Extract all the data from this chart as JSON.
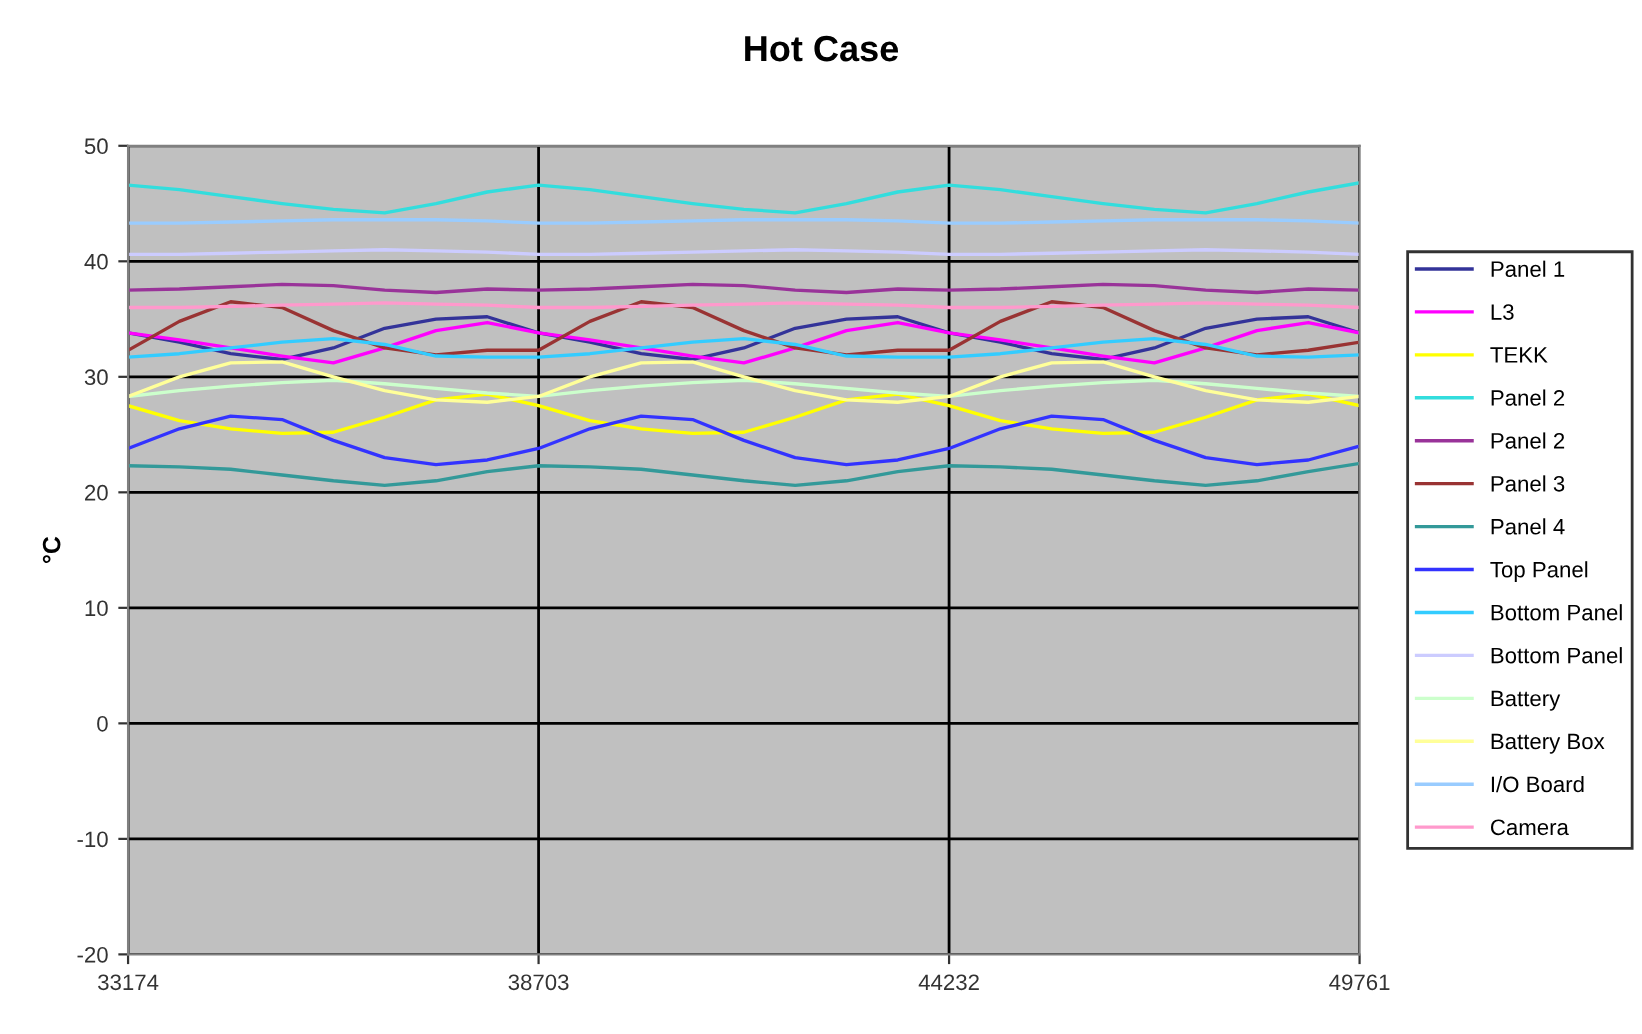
{
  "chart_data": {
    "type": "line",
    "title": "Hot Case",
    "ylabel": "°C",
    "x": [
      33174,
      33865,
      34556,
      35248,
      35939,
      36630,
      37321,
      38012,
      38703,
      39394,
      40085,
      40777,
      41468,
      42159,
      42850,
      43541,
      44232,
      44923,
      45614,
      46306,
      46997,
      47688,
      48379,
      49070,
      49761
    ],
    "xlim": [
      33174,
      49761
    ],
    "xticks": [
      33174,
      38703,
      44232,
      49761
    ],
    "ylim": [
      -20,
      50
    ],
    "yticks": [
      -20,
      -10,
      0,
      10,
      20,
      30,
      40,
      50
    ],
    "grid": true,
    "legend": "right",
    "marker": "none",
    "line_style": "solid",
    "series": [
      {
        "name": "Panel 1",
        "color": "#333399",
        "values": [
          33.8,
          33.0,
          32.0,
          31.5,
          32.5,
          34.2,
          35.0,
          35.2,
          33.8,
          33.0,
          32.0,
          31.5,
          32.5,
          34.2,
          35.0,
          35.2,
          33.8,
          33.0,
          32.0,
          31.5,
          32.5,
          34.2,
          35.0,
          35.2,
          33.8
        ]
      },
      {
        "name": "L3",
        "color": "#ff00ff",
        "values": [
          33.8,
          33.2,
          32.5,
          31.8,
          31.2,
          32.5,
          34.0,
          34.7,
          33.8,
          33.2,
          32.5,
          31.8,
          31.2,
          32.5,
          34.0,
          34.7,
          33.8,
          33.2,
          32.5,
          31.8,
          31.2,
          32.5,
          34.0,
          34.7,
          33.8
        ]
      },
      {
        "name": "TEKK",
        "color": "#ffff00",
        "values": [
          27.5,
          26.2,
          25.5,
          25.1,
          25.2,
          26.5,
          28.0,
          28.5,
          27.5,
          26.2,
          25.5,
          25.1,
          25.2,
          26.5,
          28.0,
          28.5,
          27.5,
          26.2,
          25.5,
          25.1,
          25.2,
          26.5,
          28.0,
          28.5,
          27.5
        ]
      },
      {
        "name": "Panel 2",
        "color": "#33dddd",
        "values": [
          46.6,
          46.2,
          45.6,
          45.0,
          44.5,
          44.2,
          45.0,
          46.0,
          46.6,
          46.2,
          45.6,
          45.0,
          44.5,
          44.2,
          45.0,
          46.0,
          46.6,
          46.2,
          45.6,
          45.0,
          44.5,
          44.2,
          45.0,
          46.0,
          46.8
        ]
      },
      {
        "name": "Panel 2",
        "color": "#993399",
        "values": [
          37.5,
          37.6,
          37.8,
          38.0,
          37.9,
          37.5,
          37.3,
          37.6,
          37.5,
          37.6,
          37.8,
          38.0,
          37.9,
          37.5,
          37.3,
          37.6,
          37.5,
          37.6,
          37.8,
          38.0,
          37.9,
          37.5,
          37.3,
          37.6,
          37.5
        ]
      },
      {
        "name": "Panel 3",
        "color": "#993333",
        "values": [
          32.3,
          34.8,
          36.5,
          36.0,
          34.0,
          32.5,
          31.9,
          32.3,
          32.3,
          34.8,
          36.5,
          36.0,
          34.0,
          32.5,
          31.9,
          32.3,
          32.3,
          34.8,
          36.5,
          36.0,
          34.0,
          32.5,
          31.9,
          32.3,
          33.0
        ]
      },
      {
        "name": "Panel 4",
        "color": "#339999",
        "values": [
          22.3,
          22.2,
          22.0,
          21.5,
          21.0,
          20.6,
          21.0,
          21.8,
          22.3,
          22.2,
          22.0,
          21.5,
          21.0,
          20.6,
          21.0,
          21.8,
          22.3,
          22.2,
          22.0,
          21.5,
          21.0,
          20.6,
          21.0,
          21.8,
          22.5
        ]
      },
      {
        "name": "Top Panel",
        "color": "#3333ff",
        "values": [
          23.8,
          25.5,
          26.6,
          26.3,
          24.5,
          23.0,
          22.4,
          22.8,
          23.8,
          25.5,
          26.6,
          26.3,
          24.5,
          23.0,
          22.4,
          22.8,
          23.8,
          25.5,
          26.6,
          26.3,
          24.5,
          23.0,
          22.4,
          22.8,
          24.0
        ]
      },
      {
        "name": "Bottom Panel",
        "color": "#33ccff",
        "values": [
          31.7,
          32.0,
          32.5,
          33.0,
          33.3,
          32.8,
          31.8,
          31.7,
          31.7,
          32.0,
          32.5,
          33.0,
          33.3,
          32.8,
          31.8,
          31.7,
          31.7,
          32.0,
          32.5,
          33.0,
          33.3,
          32.8,
          31.8,
          31.7,
          31.9
        ]
      },
      {
        "name": "Bottom Panel",
        "color": "#ccccff",
        "values": [
          40.6,
          40.6,
          40.7,
          40.8,
          40.9,
          41.0,
          40.9,
          40.8,
          40.6,
          40.6,
          40.7,
          40.8,
          40.9,
          41.0,
          40.9,
          40.8,
          40.6,
          40.6,
          40.7,
          40.8,
          40.9,
          41.0,
          40.9,
          40.8,
          40.6
        ]
      },
      {
        "name": "Battery",
        "color": "#ccffcc",
        "values": [
          28.3,
          28.8,
          29.2,
          29.5,
          29.7,
          29.4,
          29.0,
          28.6,
          28.3,
          28.8,
          29.2,
          29.5,
          29.7,
          29.4,
          29.0,
          28.6,
          28.3,
          28.8,
          29.2,
          29.5,
          29.7,
          29.4,
          29.0,
          28.6,
          28.3
        ]
      },
      {
        "name": "Battery Box",
        "color": "#ffff99",
        "values": [
          28.3,
          30.0,
          31.2,
          31.3,
          30.0,
          28.8,
          28.0,
          27.8,
          28.3,
          30.0,
          31.2,
          31.3,
          30.0,
          28.8,
          28.0,
          27.8,
          28.3,
          30.0,
          31.2,
          31.3,
          30.0,
          28.8,
          28.0,
          27.8,
          28.3
        ]
      },
      {
        "name": "I/O Board",
        "color": "#99ccff",
        "values": [
          43.3,
          43.3,
          43.4,
          43.5,
          43.6,
          43.6,
          43.6,
          43.5,
          43.3,
          43.3,
          43.4,
          43.5,
          43.6,
          43.6,
          43.6,
          43.5,
          43.3,
          43.3,
          43.4,
          43.5,
          43.6,
          43.6,
          43.6,
          43.5,
          43.3
        ]
      },
      {
        "name": "Camera",
        "color": "#ff99cc",
        "values": [
          36.0,
          36.0,
          36.1,
          36.2,
          36.3,
          36.4,
          36.3,
          36.2,
          36.0,
          36.0,
          36.1,
          36.2,
          36.3,
          36.4,
          36.3,
          36.2,
          36.0,
          36.0,
          36.1,
          36.2,
          36.3,
          36.4,
          36.3,
          36.2,
          36.0
        ]
      }
    ]
  }
}
